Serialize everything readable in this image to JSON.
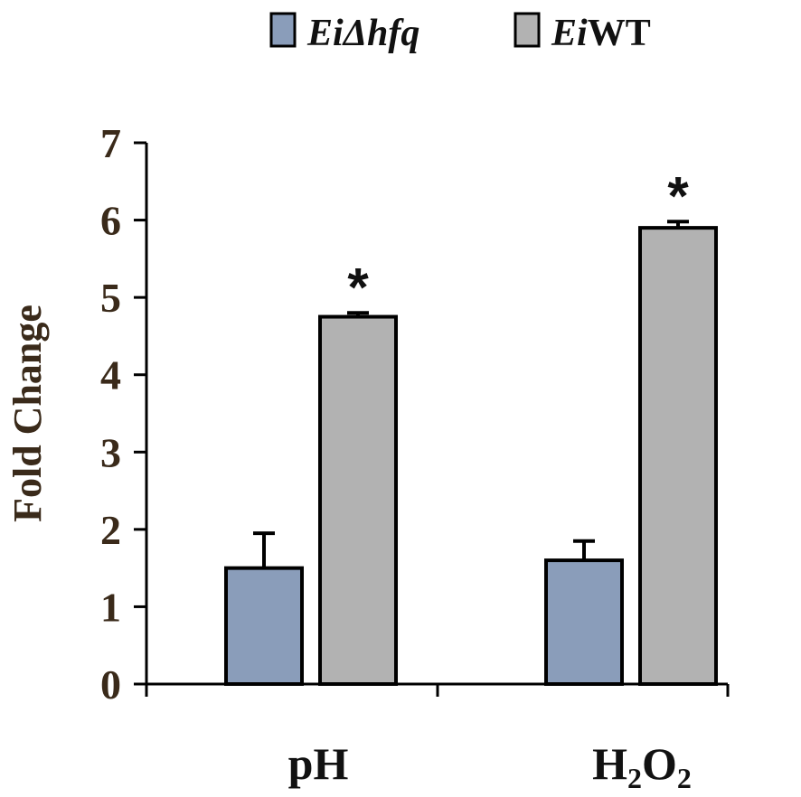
{
  "chart_data": {
    "type": "bar",
    "categories": [
      "pH",
      "H2O2"
    ],
    "series": [
      {
        "name": "EiΔhfq",
        "values": [
          1.5,
          1.6
        ],
        "errors": [
          0.45,
          0.25
        ],
        "color": "#8a9dba"
      },
      {
        "name": "EiWT",
        "values": [
          4.75,
          5.9
        ],
        "errors": [
          0.05,
          0.08
        ],
        "color": "#b2b2b2"
      }
    ],
    "significance": [
      "*",
      "*"
    ],
    "ylabel": "Fold Change",
    "ylim": [
      0,
      7
    ],
    "yticks": [
      0,
      1,
      2,
      3,
      4,
      5,
      6,
      7
    ],
    "grid": false,
    "legend_position": "top"
  },
  "legend": {
    "items": [
      {
        "italic": "Ei",
        "rest": "Δhfq",
        "rest_italic": true
      },
      {
        "italic": "Ei",
        "rest": "WT",
        "rest_italic": false
      }
    ]
  },
  "category_labels": [
    {
      "main": "pH",
      "parts": []
    },
    {
      "main": "",
      "parts": [
        {
          "t": "H"
        },
        {
          "t": "2",
          "sub": true
        },
        {
          "t": "O"
        },
        {
          "t": "2",
          "sub": true
        }
      ]
    }
  ]
}
